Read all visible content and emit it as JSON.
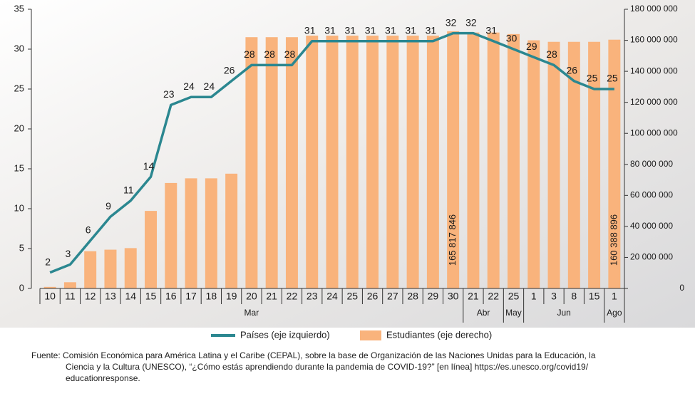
{
  "chart_data": {
    "type": "combo",
    "categories": [
      "10",
      "11",
      "12",
      "13",
      "14",
      "15",
      "16",
      "17",
      "18",
      "19",
      "20",
      "21",
      "22",
      "23",
      "24",
      "25",
      "26",
      "27",
      "28",
      "29",
      "30",
      "21",
      "22",
      "25",
      "1",
      "3",
      "8",
      "15",
      "1"
    ],
    "x_groups": [
      {
        "name": "Mar",
        "count": 21
      },
      {
        "name": "Abr",
        "count": 2
      },
      {
        "name": "May",
        "count": 1
      },
      {
        "name": "Jun",
        "count": 4
      },
      {
        "name": "Ago",
        "count": 1
      }
    ],
    "series": [
      {
        "name": "Estudiantes (eje derecho)",
        "type": "bar",
        "axis": "y2",
        "color": "#f9b37c",
        "values": [
          1000000,
          4000000,
          24000000,
          25000000,
          26000000,
          50000000,
          68000000,
          71000000,
          71000000,
          74000000,
          162000000,
          162000000,
          162000000,
          163000000,
          163000000,
          163000000,
          163000000,
          163000000,
          163000000,
          163000000,
          165817846,
          165000000,
          165000000,
          164000000,
          160000000,
          159000000,
          159000000,
          159000000,
          160388896
        ],
        "value_labels": [
          null,
          null,
          null,
          null,
          null,
          null,
          null,
          null,
          null,
          null,
          null,
          null,
          null,
          null,
          null,
          null,
          null,
          null,
          null,
          null,
          "165 817 846",
          null,
          null,
          null,
          null,
          null,
          null,
          null,
          "160 388 896"
        ]
      },
      {
        "name": "Países (eje izquierdo)",
        "type": "line",
        "axis": "y",
        "color": "#2b8790",
        "values": [
          2,
          3,
          6,
          9,
          11,
          14,
          23,
          24,
          24,
          26,
          28,
          28,
          28,
          31,
          31,
          31,
          31,
          31,
          31,
          31,
          32,
          32,
          31,
          30,
          29,
          28,
          26,
          25,
          25
        ]
      }
    ],
    "ylim": [
      0,
      35
    ],
    "yticks": [
      0,
      5,
      10,
      15,
      20,
      25,
      30,
      35
    ],
    "y2lim": [
      0,
      180000000
    ],
    "y2ticks": [
      0,
      {
        "value": 20000000,
        "label": "20 000 000"
      },
      {
        "value": 40000000,
        "label": "40 000 000"
      },
      {
        "value": 60000000,
        "label": "60 000 000"
      },
      {
        "value": 80000000,
        "label": "80 000 000"
      },
      {
        "value": 100000000,
        "label": "100 000 000"
      },
      {
        "value": 120000000,
        "label": "120 000 000"
      },
      {
        "value": 140000000,
        "label": "140 000 000"
      },
      {
        "value": 160000000,
        "label": "160 000 000"
      },
      {
        "value": 180000000,
        "label": "180 000 000"
      }
    ],
    "source": [
      "Fuente: Comisión Económica para América Latina y el Caribe (CEPAL), sobre la base de Organización de las Naciones Unidas para la Educación, la",
      "Ciencia y la Cultura (UNESCO), “¿Cómo estás aprendiendo durante la pandemia de COVID-19?” [en línea] https://es.unesco.org/covid19/",
      "educationresponse."
    ]
  }
}
